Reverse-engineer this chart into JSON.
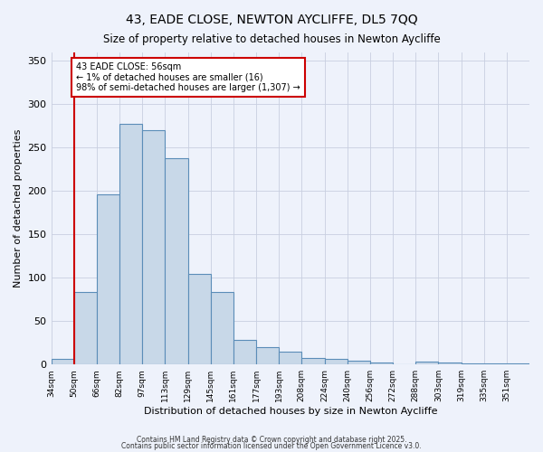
{
  "title": "43, EADE CLOSE, NEWTON AYCLIFFE, DL5 7QQ",
  "subtitle": "Size of property relative to detached houses in Newton Aycliffe",
  "xlabel": "Distribution of detached houses by size in Newton Aycliffe",
  "ylabel": "Number of detached properties",
  "bar_color": "#c8d8e8",
  "bar_edge_color": "#5b8db8",
  "background_color": "#eef2fb",
  "grid_color": "#c8cfe0",
  "bins": [
    "34sqm",
    "50sqm",
    "66sqm",
    "82sqm",
    "97sqm",
    "113sqm",
    "129sqm",
    "145sqm",
    "161sqm",
    "177sqm",
    "193sqm",
    "208sqm",
    "224sqm",
    "240sqm",
    "256sqm",
    "272sqm",
    "288sqm",
    "303sqm",
    "319sqm",
    "335sqm",
    "351sqm"
  ],
  "values": [
    6,
    84,
    196,
    277,
    270,
    238,
    104,
    84,
    28,
    20,
    15,
    8,
    6,
    4,
    2,
    0,
    3,
    2,
    1,
    1,
    1
  ],
  "ylim": [
    0,
    360
  ],
  "yticks": [
    0,
    50,
    100,
    150,
    200,
    250,
    300,
    350
  ],
  "vline_x": 1,
  "vline_color": "#cc0000",
  "annotation_text": "43 EADE CLOSE: 56sqm\n← 1% of detached houses are smaller (16)\n98% of semi-detached houses are larger (1,307) →",
  "footer1": "Contains HM Land Registry data © Crown copyright and database right 2025.",
  "footer2": "Contains public sector information licensed under the Open Government Licence v3.0."
}
